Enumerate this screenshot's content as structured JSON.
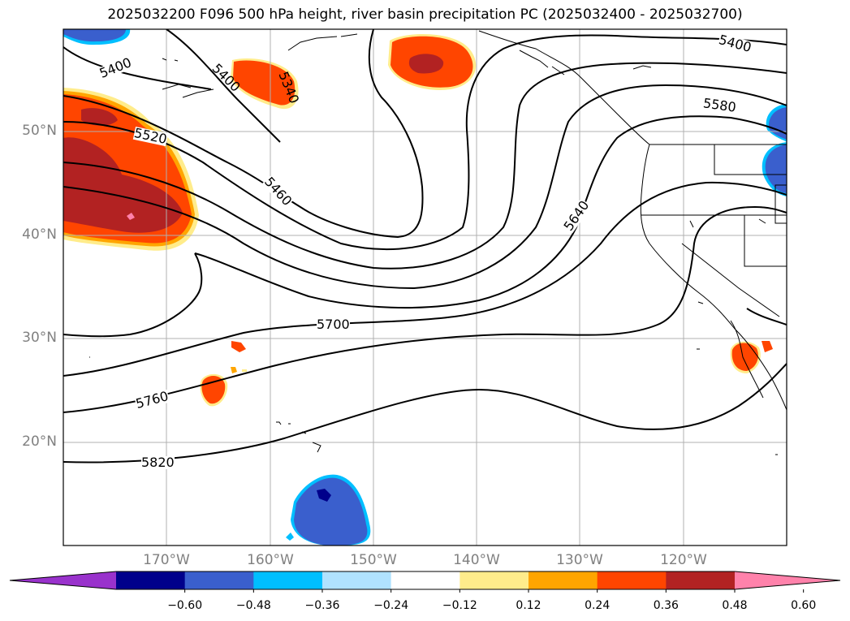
{
  "title": "2025032200 F096 500 hPa height, river basin precipitation PC (2025032400 - 2025032700)",
  "lat_labels": [
    "50°N",
    "40°N",
    "30°N",
    "20°N"
  ],
  "lon_labels": [
    "170°W",
    "160°W",
    "150°W",
    "140°W",
    "130°W",
    "120°W"
  ],
  "contour_labels": [
    "5400",
    "5400",
    "5340",
    "5520",
    "5460",
    "5400",
    "5580",
    "5640",
    "5700",
    "5760",
    "5820"
  ],
  "colorbar": {
    "ticks": [
      "−0.60",
      "−0.48",
      "−0.36",
      "−0.24",
      "−0.12",
      "0.12",
      "0.24",
      "0.36",
      "0.48",
      "0.60"
    ],
    "colors": [
      "#9932cc",
      "#00008b",
      "#3a5fcd",
      "#00bfff",
      "#b0e2ff",
      "#ffffff",
      "#ffec8b",
      "#ffa500",
      "#ff4500",
      "#b22222",
      "#ff82ab"
    ]
  },
  "colors": {
    "contour": "#000000",
    "grid": "#b0b0b0",
    "coast": "#000000"
  }
}
